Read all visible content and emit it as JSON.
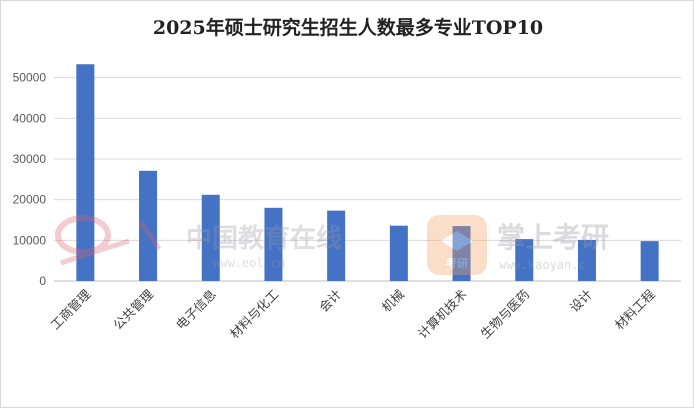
{
  "chart_data": {
    "type": "bar",
    "title": "2025年硕士研究生招生人数最多专业TOP10",
    "categories": [
      "工商管理",
      "公共管理",
      "电子信息",
      "材料与化工",
      "会计",
      "机械",
      "计算机技术",
      "生物与医药",
      "设计",
      "材料工程"
    ],
    "values": [
      53300,
      27100,
      21200,
      18000,
      17300,
      13600,
      13500,
      10300,
      10100,
      9800
    ],
    "ylim": [
      0,
      60000
    ],
    "yticks": [
      "0",
      "10000",
      "20000",
      "30000",
      "40000",
      "50000"
    ],
    "grid": true,
    "legend": "none"
  },
  "colors": {
    "bar": "#4472C4",
    "grid": "#d9d9d9",
    "axis": "#bfbfbf"
  },
  "watermarks": {
    "left_name": "中国教育在线",
    "left_url": "www.eol.cn",
    "right_name": "掌上考研",
    "right_url": "www.kaoyan.c",
    "right_badge": "考研"
  }
}
